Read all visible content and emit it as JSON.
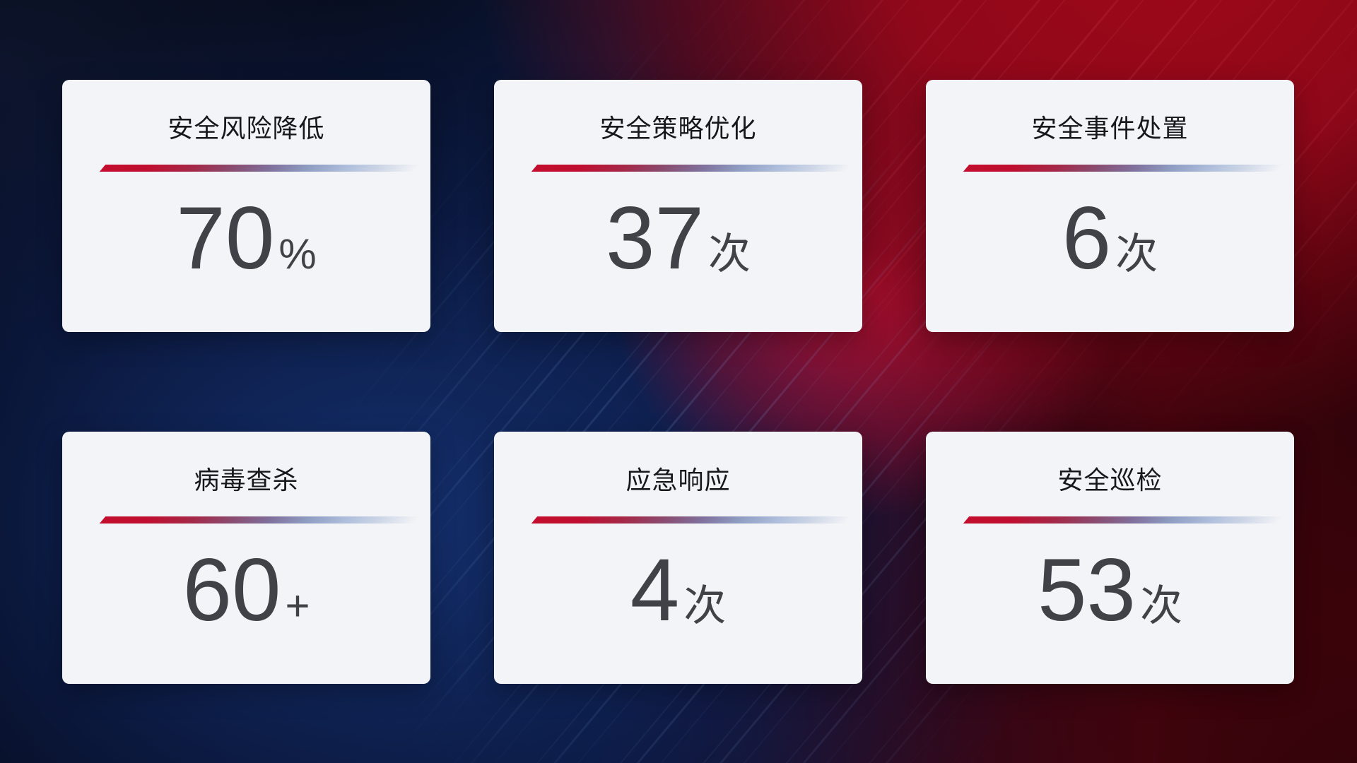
{
  "cards": [
    {
      "title": "安全风险降低",
      "value": "70",
      "unit": "%"
    },
    {
      "title": "安全策略优化",
      "value": "37",
      "unit": "次"
    },
    {
      "title": "安全事件处置",
      "value": "6",
      "unit": "次"
    },
    {
      "title": "病毒查杀",
      "value": "60",
      "unit": "+"
    },
    {
      "title": "应急响应",
      "value": "4",
      "unit": "次"
    },
    {
      "title": "安全巡检",
      "value": "53",
      "unit": "次"
    }
  ],
  "colors": {
    "card_bg": "#f3f4f7",
    "title_text": "#17181c",
    "value_text": "#404248",
    "divider_red": "#c20d2e",
    "divider_blue": "#aebedb",
    "bg_navy": "#0a1635",
    "bg_blue": "#14306e",
    "bg_red": "#9c0818"
  }
}
